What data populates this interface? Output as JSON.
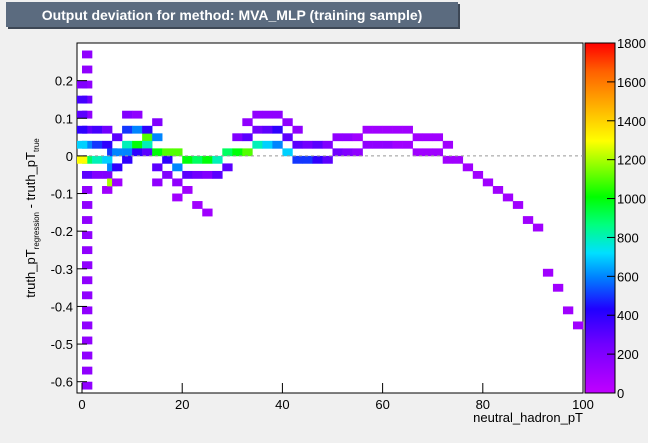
{
  "chart_data": {
    "type": "heatmap",
    "title": "Output deviation for method: MVA_MLP (training sample)",
    "xlabel": "neutral_hadron_pT",
    "ylabel_parts": [
      "truth_pT",
      "regression",
      " - truth_pT",
      "true"
    ],
    "xlim": [
      -1,
      100
    ],
    "ylim": [
      -0.63,
      0.3
    ],
    "x_ticks": [
      0,
      20,
      40,
      60,
      80,
      100
    ],
    "y_ticks": [
      -0.6,
      -0.5,
      -0.4,
      -0.3,
      -0.2,
      -0.1,
      0,
      0.1,
      0.2
    ],
    "z_ticks": [
      0,
      200,
      400,
      600,
      800,
      1000,
      1200,
      1400,
      1600,
      1800
    ],
    "zlim": [
      0,
      1800
    ],
    "colormap": "rainbow",
    "reference_line_y": 0,
    "grid": false,
    "bin_width_x": 2,
    "bin_width_y": 0.02,
    "cells": [
      [
        0,
        -0.62,
        150
      ],
      [
        0,
        -0.58,
        150
      ],
      [
        0,
        -0.54,
        150
      ],
      [
        0,
        -0.5,
        150
      ],
      [
        0,
        -0.46,
        150
      ],
      [
        0,
        -0.42,
        150
      ],
      [
        0,
        -0.38,
        150
      ],
      [
        0,
        -0.34,
        150
      ],
      [
        0,
        -0.3,
        150
      ],
      [
        0,
        -0.26,
        150
      ],
      [
        0,
        -0.22,
        150
      ],
      [
        0,
        -0.18,
        150
      ],
      [
        0,
        -0.14,
        150
      ],
      [
        0,
        -0.1,
        150
      ],
      [
        0,
        -0.06,
        300
      ],
      [
        0,
        -0.02,
        900
      ],
      [
        0,
        0.02,
        600
      ],
      [
        0,
        0.06,
        300
      ],
      [
        0,
        0.1,
        150
      ],
      [
        0,
        0.14,
        250
      ],
      [
        0,
        0.18,
        150
      ],
      [
        0,
        0.22,
        150
      ],
      [
        0,
        0.26,
        150
      ],
      [
        -1,
        -0.02,
        1300
      ],
      [
        -1,
        0.02,
        700
      ],
      [
        -1,
        0.06,
        400
      ],
      [
        -1,
        0.1,
        300
      ],
      [
        -1,
        0.14,
        350
      ],
      [
        -1,
        0.18,
        200
      ],
      [
        2,
        -0.02,
        800
      ],
      [
        2,
        0.02,
        500
      ],
      [
        2,
        0.06,
        350
      ],
      [
        2,
        -0.06,
        200
      ],
      [
        4,
        -0.02,
        700
      ],
      [
        4,
        0.02,
        400
      ],
      [
        4,
        0.06,
        250
      ],
      [
        4,
        -0.06,
        200
      ],
      [
        4,
        -0.1,
        100
      ],
      [
        5,
        -0.04,
        600
      ],
      [
        5,
        -0.08,
        1200
      ],
      [
        5,
        0.0,
        500
      ],
      [
        6,
        0.0,
        600
      ],
      [
        6,
        -0.04,
        400
      ],
      [
        6,
        0.04,
        300
      ],
      [
        6,
        -0.08,
        100
      ],
      [
        8,
        0.02,
        800
      ],
      [
        8,
        0.06,
        500
      ],
      [
        8,
        0.0,
        600
      ],
      [
        8,
        -0.02,
        400
      ],
      [
        8,
        0.1,
        200
      ],
      [
        10,
        0.02,
        1000
      ],
      [
        10,
        0.06,
        600
      ],
      [
        10,
        0.0,
        400
      ],
      [
        10,
        0.1,
        150
      ],
      [
        12,
        0.04,
        1100
      ],
      [
        12,
        0.02,
        800
      ],
      [
        12,
        0.06,
        400
      ],
      [
        12,
        0.0,
        300
      ],
      [
        14,
        0.0,
        1000
      ],
      [
        14,
        0.04,
        600
      ],
      [
        14,
        -0.04,
        300
      ],
      [
        14,
        -0.08,
        150
      ],
      [
        14,
        0.08,
        200
      ],
      [
        16,
        0.0,
        1100
      ],
      [
        16,
        -0.02,
        400
      ],
      [
        16,
        -0.06,
        200
      ],
      [
        18,
        0.0,
        1100
      ],
      [
        18,
        -0.04,
        600
      ],
      [
        18,
        -0.08,
        150
      ],
      [
        18,
        -0.12,
        100
      ],
      [
        20,
        -0.02,
        1000
      ],
      [
        20,
        -0.06,
        300
      ],
      [
        20,
        -0.1,
        100
      ],
      [
        22,
        -0.02,
        900
      ],
      [
        22,
        -0.06,
        250
      ],
      [
        22,
        -0.14,
        100
      ],
      [
        24,
        -0.02,
        1000
      ],
      [
        24,
        -0.06,
        200
      ],
      [
        24,
        -0.16,
        100
      ],
      [
        26,
        -0.02,
        800
      ],
      [
        26,
        -0.06,
        300
      ],
      [
        28,
        0.0,
        900
      ],
      [
        28,
        -0.04,
        300
      ],
      [
        30,
        0.0,
        1000
      ],
      [
        30,
        0.04,
        200
      ],
      [
        32,
        0.0,
        1100
      ],
      [
        32,
        0.04,
        300
      ],
      [
        32,
        0.08,
        150
      ],
      [
        34,
        0.02,
        800
      ],
      [
        34,
        0.06,
        250
      ],
      [
        34,
        0.1,
        150
      ],
      [
        36,
        0.02,
        700
      ],
      [
        36,
        0.06,
        300
      ],
      [
        36,
        0.1,
        150
      ],
      [
        38,
        0.02,
        600
      ],
      [
        38,
        0.06,
        400
      ],
      [
        38,
        0.1,
        150
      ],
      [
        40,
        0.0,
        700
      ],
      [
        40,
        0.04,
        300
      ],
      [
        40,
        0.08,
        150
      ],
      [
        42,
        -0.02,
        500
      ],
      [
        42,
        0.02,
        300
      ],
      [
        42,
        0.06,
        150
      ],
      [
        44,
        -0.02,
        500
      ],
      [
        44,
        0.02,
        250
      ],
      [
        46,
        -0.02,
        400
      ],
      [
        46,
        0.02,
        300
      ],
      [
        48,
        -0.02,
        300
      ],
      [
        48,
        0.02,
        200
      ],
      [
        50,
        0.0,
        250
      ],
      [
        50,
        0.04,
        150
      ],
      [
        52,
        0.0,
        200
      ],
      [
        52,
        0.04,
        150
      ],
      [
        54,
        0.0,
        150
      ],
      [
        54,
        0.04,
        100
      ],
      [
        56,
        0.02,
        150
      ],
      [
        56,
        0.06,
        100
      ],
      [
        58,
        0.02,
        150
      ],
      [
        58,
        0.06,
        100
      ],
      [
        60,
        0.02,
        150
      ],
      [
        60,
        0.06,
        100
      ],
      [
        62,
        0.02,
        100
      ],
      [
        62,
        0.06,
        100
      ],
      [
        64,
        0.02,
        100
      ],
      [
        64,
        0.06,
        100
      ],
      [
        66,
        0.0,
        100
      ],
      [
        66,
        0.04,
        100
      ],
      [
        68,
        0.0,
        100
      ],
      [
        68,
        0.04,
        100
      ],
      [
        70,
        0.0,
        100
      ],
      [
        70,
        0.04,
        100
      ],
      [
        72,
        -0.02,
        100
      ],
      [
        72,
        0.02,
        100
      ],
      [
        74,
        -0.02,
        100
      ],
      [
        76,
        -0.04,
        100
      ],
      [
        78,
        -0.06,
        100
      ],
      [
        80,
        -0.08,
        100
      ],
      [
        82,
        -0.1,
        100
      ],
      [
        84,
        -0.12,
        100
      ],
      [
        86,
        -0.14,
        100
      ],
      [
        88,
        -0.18,
        100
      ],
      [
        90,
        -0.2,
        100
      ],
      [
        92,
        -0.32,
        100
      ],
      [
        94,
        -0.36,
        100
      ],
      [
        96,
        -0.42,
        100
      ],
      [
        98,
        -0.46,
        100
      ]
    ]
  }
}
